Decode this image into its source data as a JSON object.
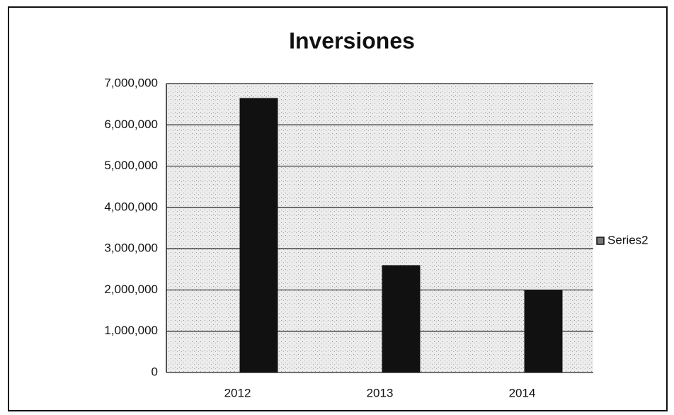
{
  "chart_data": {
    "type": "bar",
    "title": "Inversiones",
    "categories": [
      "2012",
      "2013",
      "2014"
    ],
    "series": [
      {
        "name": "Series2",
        "color": "#111111",
        "values": [
          6650000,
          2600000,
          2000000
        ]
      }
    ],
    "ylim": [
      0,
      7000000
    ],
    "yticks": [
      0,
      {
        "value": 1000000,
        "label": "1,000,000"
      },
      {
        "value": 2000000,
        "label": "2,000,000"
      },
      {
        "value": 3000000,
        "label": "3,000,000"
      },
      {
        "value": 4000000,
        "label": "4,000,000"
      },
      {
        "value": 5000000,
        "label": "5,000,000"
      },
      {
        "value": 6000000,
        "label": "6,000,000"
      },
      {
        "value": 7000000,
        "label": "7,000,000"
      }
    ],
    "grid": true,
    "legend": "right"
  }
}
